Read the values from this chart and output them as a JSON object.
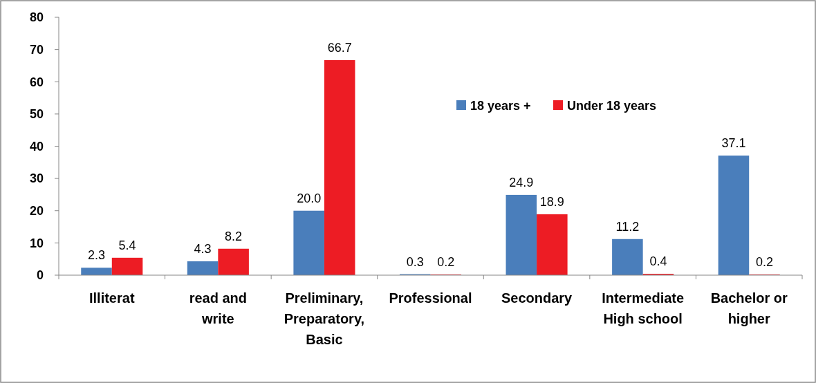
{
  "chart_data": {
    "type": "bar",
    "categories": [
      "Illiterat",
      "read and write",
      "Preliminary, Preparatory, Basic",
      "Professional",
      "Secondary",
      "Intermediate High school",
      "Bachelor or higher"
    ],
    "series": [
      {
        "name": "18 years +",
        "color": "#4a7ebb",
        "values": [
          2.3,
          4.3,
          20.0,
          0.3,
          24.9,
          11.2,
          37.1
        ],
        "value_labels": [
          "2.3",
          "4.3",
          "20.0",
          "0.3",
          "24.9",
          "11.2",
          "37.1"
        ]
      },
      {
        "name": "Under 18 years",
        "color": "#ed1c24",
        "values": [
          5.4,
          8.2,
          66.7,
          0.2,
          18.9,
          0.4,
          0.2
        ],
        "value_labels": [
          "5.4",
          "8.2",
          "66.7",
          "0.2",
          "18.9",
          "0.4",
          "0.2"
        ]
      }
    ],
    "ylim": [
      0,
      80
    ],
    "yticks": [
      0,
      10,
      20,
      30,
      40,
      50,
      60,
      70,
      80
    ],
    "legend": "top right"
  }
}
